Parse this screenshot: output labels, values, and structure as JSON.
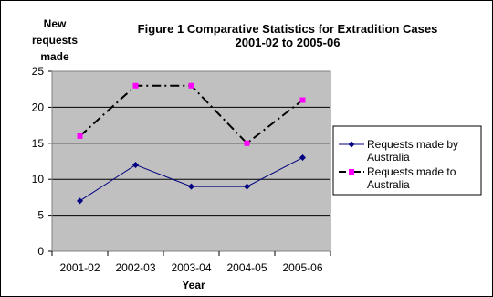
{
  "chart_data": {
    "type": "line",
    "title_line1": "Figure 1 Comparative Statistics for Extradition Cases",
    "title_line2": "2001-02 to 2005-06",
    "ylabel_lines": [
      "New",
      "requests",
      "made"
    ],
    "xlabel": "Year",
    "categories": [
      "2001-02",
      "2002-03",
      "2003-04",
      "2004-05",
      "2005-06"
    ],
    "ylim": [
      0,
      25
    ],
    "yticks": [
      0,
      5,
      10,
      15,
      20,
      25
    ],
    "grid": true,
    "legend_position": "right",
    "series": [
      {
        "name": "Requests made by Australia",
        "name_lines": [
          "Requests made by",
          "Australia"
        ],
        "values": [
          7,
          12,
          9,
          9,
          13
        ],
        "color": "#000080",
        "marker": "diamond",
        "line_style": "solid"
      },
      {
        "name": "Requests made to Australia",
        "name_lines": [
          "Requests made to",
          "Australia"
        ],
        "values": [
          16,
          23,
          23,
          15,
          21
        ],
        "color": "#000000",
        "marker_color": "#ff00ff",
        "marker": "square",
        "line_style": "dash-dot"
      }
    ],
    "plot_background": "#c0c0c0"
  }
}
